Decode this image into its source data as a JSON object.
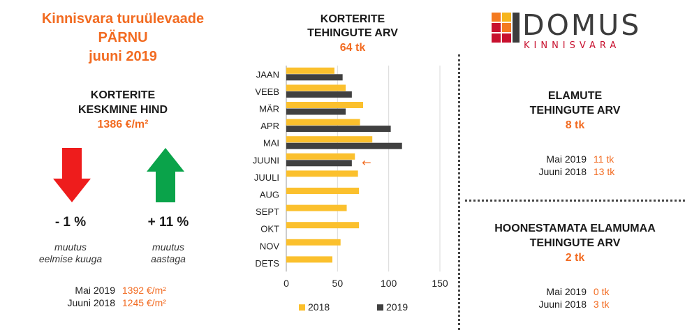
{
  "header": {
    "line1": "Kinnisvara turuülevaade",
    "line2": "PÄRNU",
    "line3": "juuni 2019"
  },
  "avg_price": {
    "title1": "KORTERITE",
    "title2": "KESKMINE HIND",
    "value": "1386 €/m²",
    "down": {
      "pct": "- 1 %",
      "note1": "muutus",
      "note2": "eelmise kuuga"
    },
    "up": {
      "pct": "+ 11 %",
      "note1": "muutus",
      "note2": "aastaga"
    },
    "compare": [
      {
        "label": "Mai 2019",
        "value": "1392 €/m²"
      },
      {
        "label": "Juuni 2018",
        "value": "1245 €/m²"
      }
    ],
    "colors": {
      "down_arrow": "#ee1c1c",
      "up_arrow": "#0aa34a"
    }
  },
  "chart_head": {
    "title1": "KORTERITE",
    "title2": "TEHINGUTE ARV",
    "value": "64 tk"
  },
  "chart_data": {
    "type": "bar",
    "orientation": "horizontal",
    "categories": [
      "JAAN",
      "VEEB",
      "MÄR",
      "APR",
      "MAI",
      "JUUNI",
      "JUULI",
      "AUG",
      "SEPT",
      "OKT",
      "NOV",
      "DETS"
    ],
    "series": [
      {
        "name": "2018",
        "color": "#fbc02d",
        "values": [
          47,
          58,
          75,
          72,
          84,
          67,
          70,
          71,
          59,
          71,
          53,
          45
        ]
      },
      {
        "name": "2019",
        "color": "#404040",
        "values": [
          55,
          64,
          58,
          102,
          113,
          64,
          null,
          null,
          null,
          null,
          null,
          null
        ]
      }
    ],
    "xlim": [
      0,
      150
    ],
    "xticks": [
      "0",
      "50",
      "100",
      "150"
    ],
    "grid": true,
    "legend": "bottom",
    "marker": {
      "category": "JUUNI",
      "symbol": "←"
    }
  },
  "houses": {
    "title1": "ELAMUTE",
    "title2": "TEHINGUTE ARV",
    "value": "8 tk",
    "compare": [
      {
        "label": "Mai 2019",
        "value": "11 tk"
      },
      {
        "label": "Juuni 2018",
        "value": "13 tk"
      }
    ]
  },
  "land": {
    "title1": "HOONESTAMATA ELAMUMAA",
    "title2": "TEHINGUTE ARV",
    "value": "2 tk",
    "compare": [
      {
        "label": "Mai 2019",
        "value": "0 tk"
      },
      {
        "label": "Juuni 2018",
        "value": "3 tk"
      }
    ]
  },
  "logo": {
    "word": "DOMUS",
    "sub": "KINNISVARA",
    "colors": {
      "orange": "#f47a20",
      "yellow": "#f6b51c",
      "red": "#c8102e",
      "grey": "#3c3c3c"
    }
  }
}
